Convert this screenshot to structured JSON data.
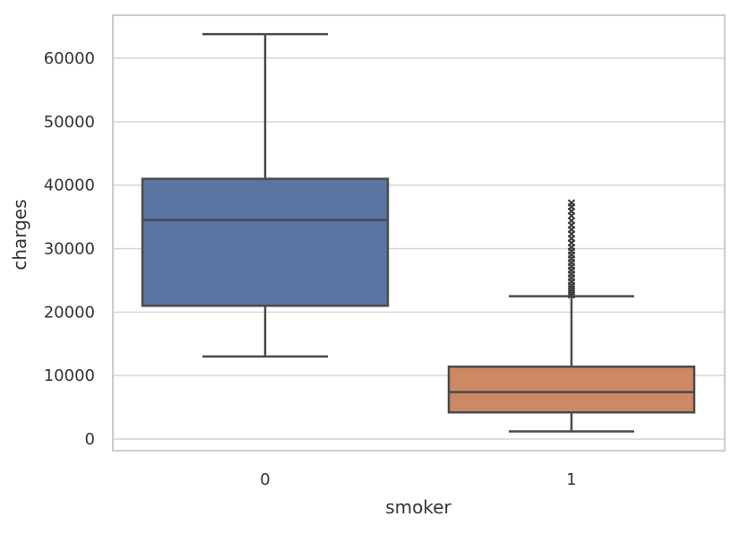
{
  "chart_data": {
    "type": "box",
    "title": "",
    "xlabel": "smoker",
    "ylabel": "charges",
    "categories": [
      "0",
      "1"
    ],
    "ylim": [
      -2000,
      66000
    ],
    "yticks": [
      0,
      10000,
      20000,
      30000,
      40000,
      50000,
      60000
    ],
    "ytick_labels": [
      "0",
      "10000",
      "20000",
      "30000",
      "40000",
      "50000",
      "60000"
    ],
    "grid": true,
    "boxes": [
      {
        "category": "0",
        "color": "#5875a4",
        "whisker_low": 13000,
        "q1": 21000,
        "median": 34500,
        "q3": 41000,
        "whisker_high": 63800,
        "outliers": []
      },
      {
        "category": "1",
        "color": "#cc8963",
        "whisker_low": 1200,
        "q1": 4200,
        "median": 7400,
        "q3": 11400,
        "whisker_high": 22500,
        "outliers": [
          22700,
          23200,
          23700,
          24200,
          24800,
          25400,
          26000,
          26600,
          27200,
          27800,
          28400,
          29000,
          29600,
          30200,
          30900,
          31600,
          32300,
          33000,
          33700,
          34400,
          35200,
          35900,
          36600,
          37200
        ]
      }
    ]
  }
}
